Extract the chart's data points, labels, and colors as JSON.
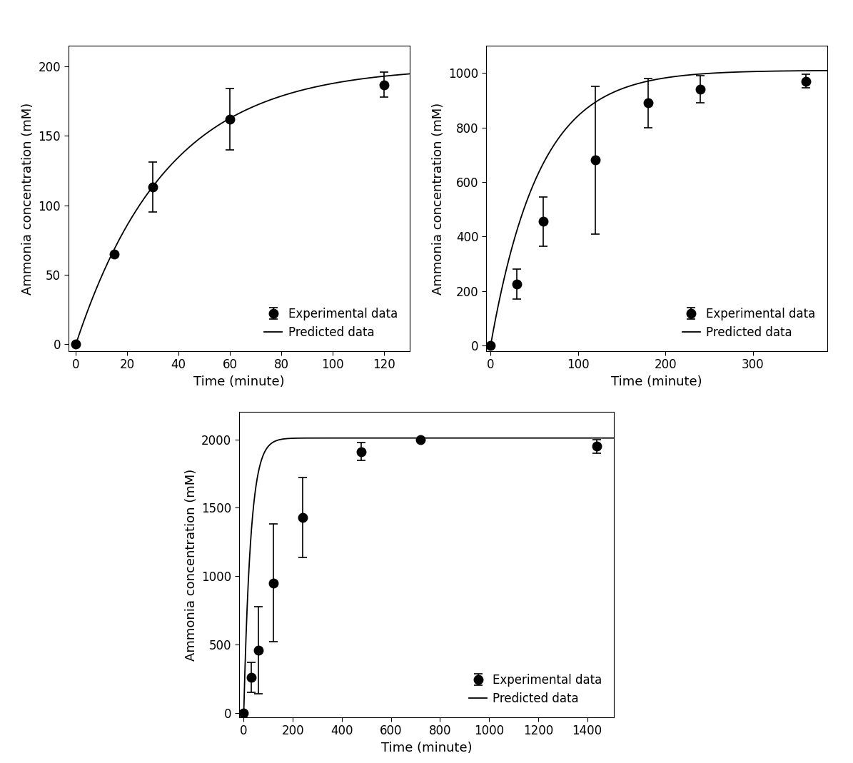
{
  "plot1": {
    "exp_x": [
      0,
      15,
      30,
      60,
      120
    ],
    "exp_y": [
      0,
      65,
      113,
      162,
      187
    ],
    "exp_yerr": [
      0,
      0,
      18,
      22,
      9
    ],
    "curve_params": {
      "A": 200,
      "k": 0.028
    },
    "xlim": [
      -3,
      130
    ],
    "ylim": [
      -5,
      215
    ],
    "xticks": [
      0,
      20,
      40,
      60,
      80,
      100,
      120
    ],
    "yticks": [
      0,
      50,
      100,
      150,
      200
    ],
    "xlabel": "Time (minute)",
    "ylabel": "Ammonia concentration (mM)"
  },
  "plot2": {
    "exp_x": [
      0,
      30,
      60,
      120,
      180,
      240,
      360
    ],
    "exp_y": [
      0,
      225,
      455,
      680,
      890,
      940,
      970
    ],
    "exp_yerr": [
      0,
      55,
      90,
      270,
      90,
      50,
      25
    ],
    "curve_params": {
      "A": 1010,
      "k": 0.018
    },
    "xlim": [
      -5,
      385
    ],
    "ylim": [
      -20,
      1100
    ],
    "xticks": [
      0,
      100,
      200,
      300
    ],
    "yticks": [
      0,
      200,
      400,
      600,
      800,
      1000
    ],
    "xlabel": "Time (minute)",
    "ylabel": "Ammonia concentration (mM)"
  },
  "plot3": {
    "exp_x": [
      0,
      30,
      60,
      120,
      240,
      480,
      720,
      1440
    ],
    "exp_y": [
      0,
      260,
      460,
      950,
      1430,
      1910,
      2000,
      1950
    ],
    "exp_yerr": [
      0,
      110,
      320,
      430,
      290,
      65,
      0,
      50
    ],
    "curve_params": {
      "A": 2010,
      "k": 0.035
    },
    "xlim": [
      -20,
      1510
    ],
    "ylim": [
      -30,
      2200
    ],
    "xticks": [
      0,
      200,
      400,
      600,
      800,
      1000,
      1200,
      1400
    ],
    "yticks": [
      0,
      500,
      1000,
      1500,
      2000
    ],
    "xlabel": "Time (minute)",
    "ylabel": "Ammonia concentration (mM)"
  },
  "legend_labels": [
    "Experimental data",
    "Predicted data"
  ],
  "marker_color": "#000000",
  "line_color": "#000000",
  "marker_size": 9,
  "line_width": 1.3,
  "font_size": 13,
  "tick_font_size": 12,
  "background_color": "#ffffff"
}
